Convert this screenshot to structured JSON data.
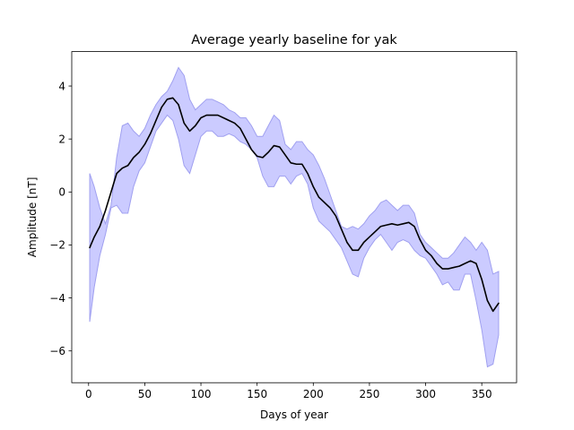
{
  "chart_data": {
    "type": "area",
    "title": "Average yearly baseline for yak",
    "xlabel": "Days of year",
    "ylabel": "Amplitude [nT]",
    "xlim": [
      -15,
      381
    ],
    "ylim": [
      -7.2,
      5.3
    ],
    "xticks": [
      0,
      50,
      100,
      150,
      200,
      250,
      300,
      350
    ],
    "yticks": [
      -6,
      -4,
      -2,
      0,
      2,
      4
    ],
    "xtick_labels": [
      "0",
      "50",
      "100",
      "150",
      "200",
      "250",
      "300",
      "350"
    ],
    "ytick_labels": [
      "−6",
      "−4",
      "−2",
      "0",
      "2",
      "4"
    ],
    "grid": false,
    "colors": {
      "line": "#000000",
      "band_fill": "#c8c8ff",
      "band_edge": "#a0a0f0",
      "axes": "#000000"
    },
    "series": [
      {
        "type": "band",
        "x": [
          1,
          5,
          10,
          15,
          20,
          25,
          30,
          35,
          40,
          45,
          50,
          55,
          60,
          65,
          70,
          75,
          80,
          85,
          90,
          95,
          100,
          105,
          110,
          115,
          120,
          125,
          130,
          135,
          140,
          145,
          150,
          155,
          160,
          165,
          170,
          175,
          180,
          185,
          190,
          195,
          200,
          205,
          210,
          215,
          220,
          225,
          230,
          235,
          240,
          245,
          250,
          255,
          260,
          265,
          270,
          275,
          280,
          285,
          290,
          295,
          300,
          305,
          310,
          315,
          320,
          325,
          330,
          335,
          340,
          345,
          350,
          355,
          360,
          365
        ],
        "lower": [
          -4.9,
          -3.6,
          -2.4,
          -1.6,
          -0.6,
          -0.5,
          -0.8,
          -0.8,
          0.2,
          0.8,
          1.1,
          1.7,
          2.3,
          2.6,
          2.9,
          2.7,
          2.0,
          1.0,
          0.7,
          1.4,
          2.1,
          2.3,
          2.3,
          2.1,
          2.1,
          2.2,
          2.1,
          1.9,
          1.8,
          1.6,
          1.3,
          0.6,
          0.2,
          0.2,
          0.6,
          0.6,
          0.3,
          0.6,
          0.7,
          0.3,
          -0.6,
          -1.1,
          -1.3,
          -1.5,
          -1.8,
          -2.1,
          -2.6,
          -3.1,
          -3.2,
          -2.5,
          -2.1,
          -1.8,
          -1.6,
          -1.9,
          -2.2,
          -1.9,
          -1.8,
          -1.9,
          -2.2,
          -2.4,
          -2.5,
          -2.8,
          -3.1,
          -3.5,
          -3.4,
          -3.7,
          -3.7,
          -3.1,
          -3.1,
          -4.1,
          -5.2,
          -6.6,
          -6.5,
          -5.4
        ],
        "upper": [
          0.7,
          0.2,
          -0.6,
          -1.2,
          -0.5,
          1.3,
          2.5,
          2.6,
          2.3,
          2.1,
          2.4,
          2.9,
          3.3,
          3.6,
          3.8,
          4.2,
          4.7,
          4.4,
          3.5,
          3.1,
          3.3,
          3.5,
          3.5,
          3.4,
          3.3,
          3.1,
          3.0,
          2.8,
          2.8,
          2.5,
          2.1,
          2.1,
          2.5,
          2.9,
          2.7,
          1.8,
          1.6,
          1.9,
          1.9,
          1.6,
          1.4,
          1.0,
          0.5,
          -0.1,
          -0.7,
          -1.3,
          -1.4,
          -1.3,
          -1.4,
          -1.2,
          -0.9,
          -0.7,
          -0.4,
          -0.3,
          -0.5,
          -0.7,
          -0.5,
          -0.5,
          -0.8,
          -1.6,
          -1.9,
          -2.1,
          -2.3,
          -2.5,
          -2.5,
          -2.3,
          -2.0,
          -1.7,
          -1.9,
          -2.2,
          -1.9,
          -2.2,
          -3.1,
          -3.0
        ]
      },
      {
        "type": "line",
        "x": [
          1,
          5,
          10,
          15,
          20,
          25,
          30,
          35,
          40,
          45,
          50,
          55,
          60,
          65,
          70,
          75,
          80,
          85,
          90,
          95,
          100,
          105,
          110,
          115,
          120,
          125,
          130,
          135,
          140,
          145,
          150,
          155,
          160,
          165,
          170,
          175,
          180,
          185,
          190,
          195,
          200,
          205,
          210,
          215,
          220,
          225,
          230,
          235,
          240,
          245,
          250,
          255,
          260,
          265,
          270,
          275,
          280,
          285,
          290,
          295,
          300,
          305,
          310,
          315,
          320,
          325,
          330,
          335,
          340,
          345,
          350,
          355,
          360,
          365
        ],
        "y": [
          -2.1,
          -1.7,
          -1.3,
          -0.7,
          0.0,
          0.7,
          0.9,
          1.0,
          1.3,
          1.5,
          1.8,
          2.2,
          2.7,
          3.2,
          3.5,
          3.55,
          3.3,
          2.6,
          2.3,
          2.5,
          2.8,
          2.9,
          2.9,
          2.9,
          2.8,
          2.7,
          2.6,
          2.4,
          2.0,
          1.6,
          1.35,
          1.3,
          1.5,
          1.75,
          1.7,
          1.4,
          1.1,
          1.05,
          1.05,
          0.7,
          0.2,
          -0.2,
          -0.4,
          -0.6,
          -0.9,
          -1.4,
          -1.9,
          -2.2,
          -2.2,
          -1.9,
          -1.7,
          -1.5,
          -1.3,
          -1.25,
          -1.2,
          -1.25,
          -1.2,
          -1.15,
          -1.3,
          -1.8,
          -2.2,
          -2.4,
          -2.7,
          -2.9,
          -2.9,
          -2.85,
          -2.8,
          -2.7,
          -2.6,
          -2.7,
          -3.3,
          -4.1,
          -4.5,
          -4.2
        ]
      }
    ]
  }
}
